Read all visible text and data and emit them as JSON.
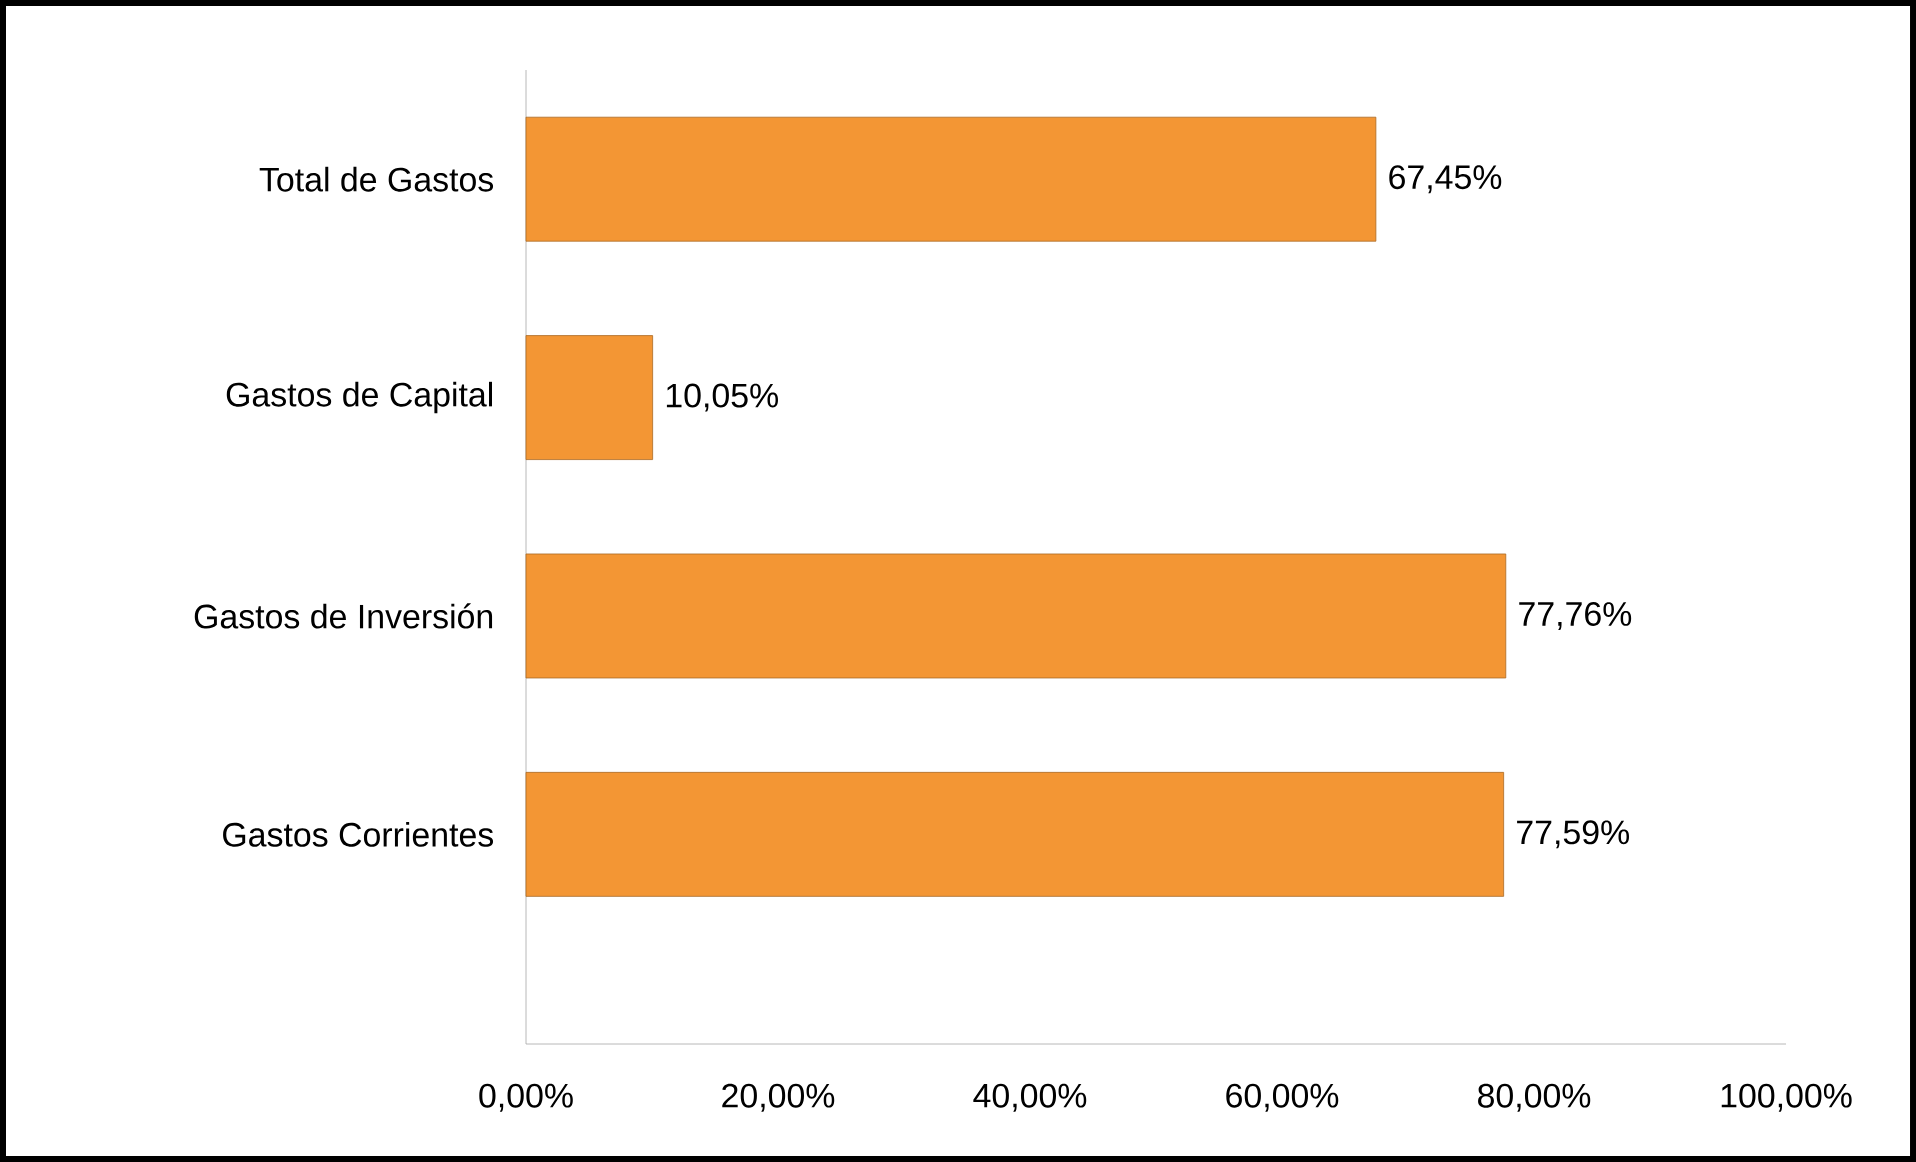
{
  "chart_data": {
    "type": "bar",
    "orientation": "horizontal",
    "categories": [
      "Total de Gastos",
      "Gastos de Capital",
      "Gastos de Inversión",
      "Gastos Corrientes"
    ],
    "values": [
      67.45,
      10.05,
      77.76,
      77.59
    ],
    "value_labels": [
      "67,45%",
      "10,05%",
      "77,76%",
      "77,59%"
    ],
    "color": "#f39634",
    "xlim": [
      0,
      100
    ],
    "xticks": [
      {
        "value": 0,
        "label": "0,00%"
      },
      {
        "value": 20,
        "label": "20,00%"
      },
      {
        "value": 40,
        "label": "40,00%"
      },
      {
        "value": 60,
        "label": "60,00%"
      },
      {
        "value": 80,
        "label": "80,00%"
      },
      {
        "value": 100,
        "label": "100,00%"
      }
    ],
    "grid": false
  }
}
